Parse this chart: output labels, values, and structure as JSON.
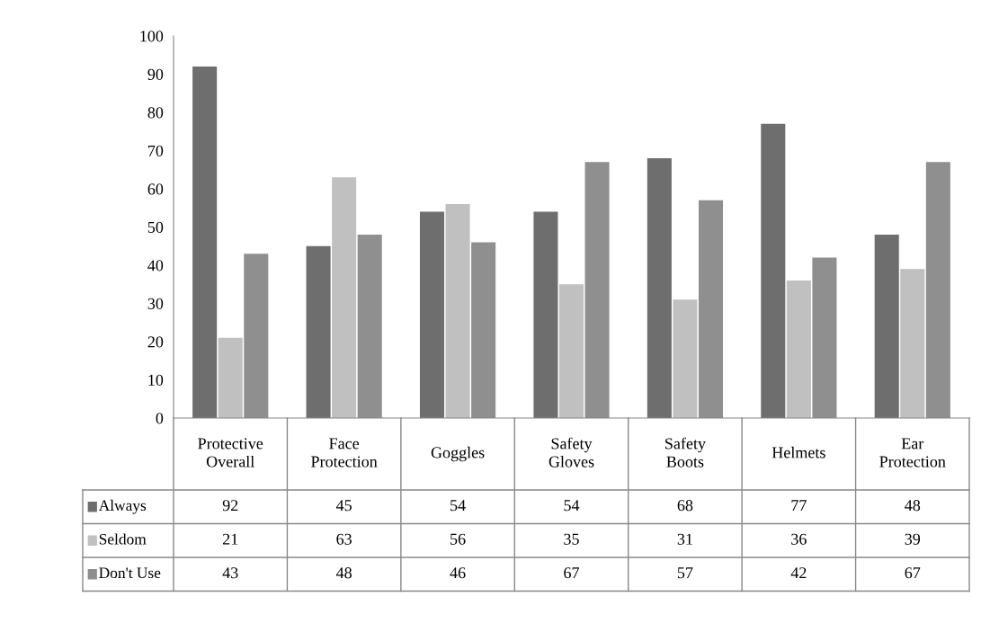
{
  "chart_data": {
    "type": "bar",
    "categories": [
      "Protective Overall",
      "Face Protection",
      "Goggles",
      "Safety Gloves",
      "Safety Boots",
      "Helmets",
      "Ear Protection"
    ],
    "series": [
      {
        "name": "Always",
        "color": "#6e6e6e",
        "values": [
          92,
          45,
          54,
          54,
          68,
          77,
          48
        ]
      },
      {
        "name": "Seldom",
        "color": "#c0c0c0",
        "values": [
          21,
          63,
          56,
          35,
          31,
          36,
          39
        ]
      },
      {
        "name": "Don't Use",
        "color": "#8f8f8f",
        "values": [
          43,
          48,
          46,
          67,
          57,
          42,
          67
        ]
      }
    ],
    "ylim": [
      0,
      100
    ],
    "yticks": [
      0,
      10,
      20,
      30,
      40,
      50,
      60,
      70,
      80,
      90,
      100
    ],
    "data_labels": true,
    "legend": "bottom left",
    "grid": false
  }
}
